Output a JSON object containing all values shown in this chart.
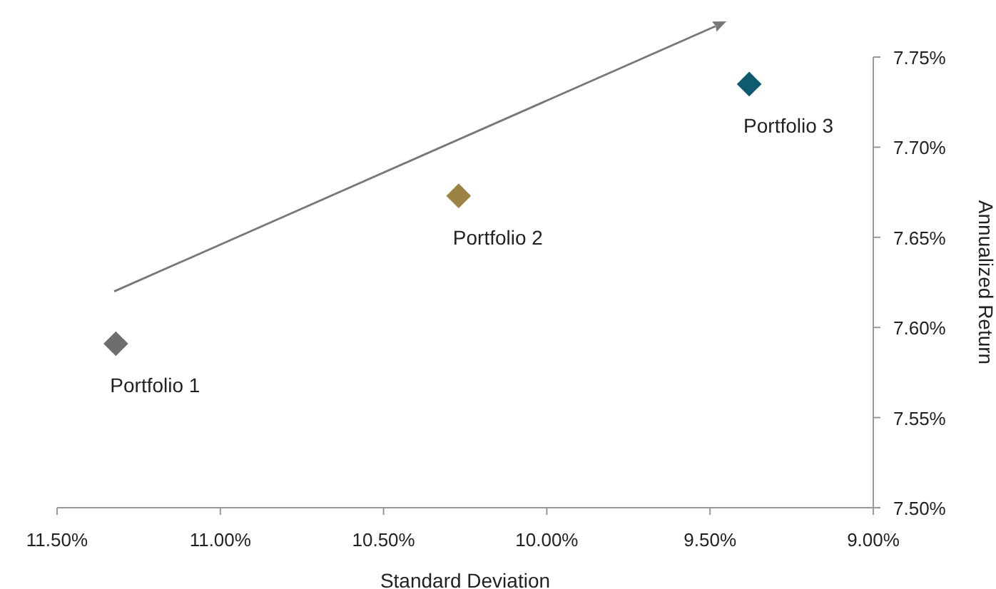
{
  "chart_data": {
    "type": "scatter",
    "xlabel": "Standard Deviation",
    "ylabel": "Annualized Return",
    "marker": "diamond",
    "grid": false,
    "xlim": [
      11.5,
      9.0
    ],
    "xticks": [
      {
        "value": 11.5,
        "label": "11.50%"
      },
      {
        "value": 11.0,
        "label": "11.00%"
      },
      {
        "value": 10.5,
        "label": "10.50%"
      },
      {
        "value": 10.0,
        "label": "10.00%"
      },
      {
        "value": 9.5,
        "label": "9.50%"
      },
      {
        "value": 9.0,
        "label": "9.00%"
      }
    ],
    "ylim": [
      7.5,
      7.75
    ],
    "yticks": [
      {
        "value": 7.5,
        "label": "7.50%"
      },
      {
        "value": 7.55,
        "label": "7.55%"
      },
      {
        "value": 7.6,
        "label": "7.60%"
      },
      {
        "value": 7.65,
        "label": "7.65%"
      },
      {
        "value": 7.7,
        "label": "7.70%"
      },
      {
        "value": 7.75,
        "label": "7.75%"
      }
    ],
    "series": [
      {
        "name": "Portfolio 1",
        "color": "#6d6e70",
        "x": [
          11.32
        ],
        "values": [
          7.591
        ]
      },
      {
        "name": "Portfolio 2",
        "color": "#9a8343",
        "x": [
          10.27
        ],
        "values": [
          7.673
        ]
      },
      {
        "name": "Portfolio 3",
        "color": "#0e5a6e",
        "x": [
          9.38
        ],
        "values": [
          7.735
        ]
      }
    ]
  }
}
